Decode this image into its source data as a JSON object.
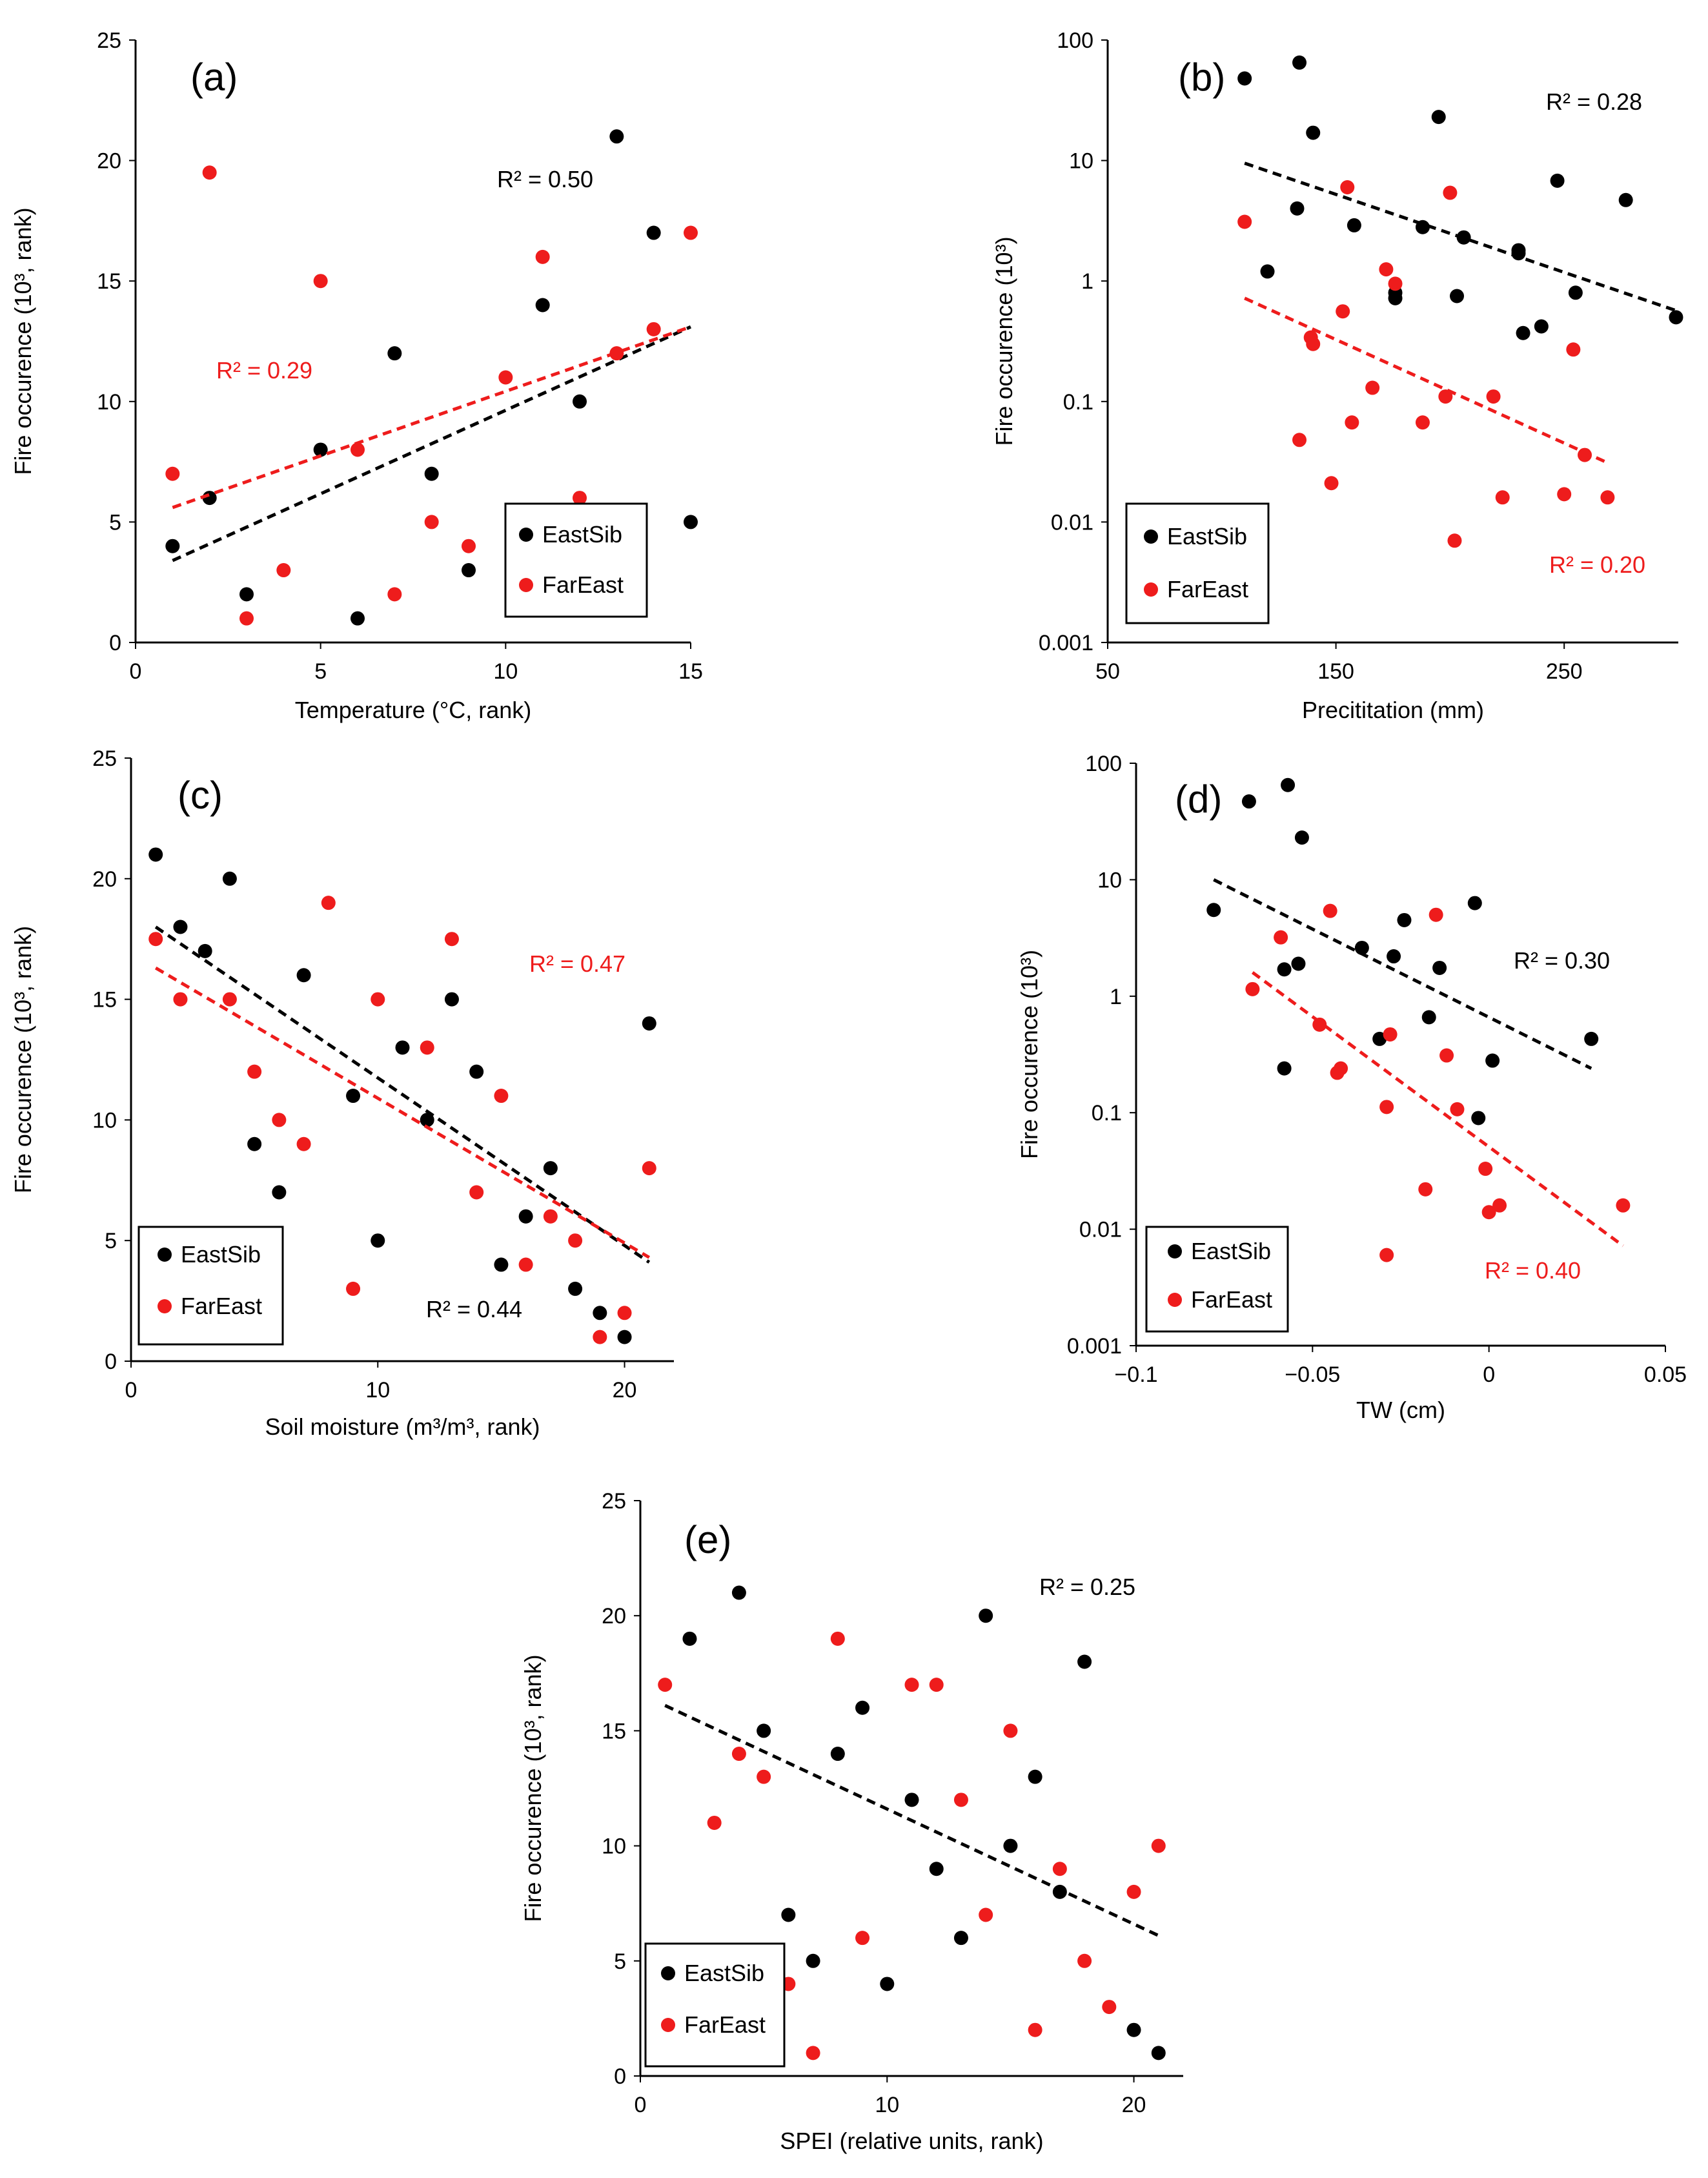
{
  "colors": {
    "eastsib": "#000000",
    "fareast": "#ee1c1c",
    "axis": "#000000",
    "background": "#ffffff"
  },
  "chart_data": [
    {
      "id": "a",
      "type": "scatter",
      "panel_label": "(a)",
      "xlabel": "Temperature (°C, rank)",
      "ylabel": "Fire occurence (10³, rank)",
      "xlim": [
        0,
        15
      ],
      "ylim": [
        0,
        25
      ],
      "xscale": "linear",
      "yscale": "linear",
      "xticks": [
        0,
        5,
        10,
        15
      ],
      "yticks": [
        0,
        5,
        10,
        15,
        20,
        25
      ],
      "xtick_labels": [
        "0",
        "5",
        "10",
        "15"
      ],
      "ytick_labels": [
        "0",
        "5",
        "10",
        "15",
        "20",
        "25"
      ],
      "legend": {
        "position": "bottom-right",
        "entries": [
          "EastSib",
          "FarEast"
        ]
      },
      "series": [
        {
          "name": "EastSib",
          "color": "#000000",
          "points": [
            [
              1,
              4
            ],
            [
              2,
              6
            ],
            [
              3,
              2
            ],
            [
              5,
              8
            ],
            [
              6,
              1
            ],
            [
              7,
              12
            ],
            [
              8,
              7
            ],
            [
              9,
              3
            ],
            [
              11,
              14
            ],
            [
              12,
              10
            ],
            [
              13,
              21
            ],
            [
              14,
              17
            ],
            [
              15,
              5
            ]
          ],
          "trend": {
            "x": [
              1,
              15
            ],
            "y": [
              3.4,
              13.1
            ]
          },
          "r2": "R² = 0.50"
        },
        {
          "name": "FarEast",
          "color": "#ee1c1c",
          "points": [
            [
              1,
              7
            ],
            [
              2,
              19.5
            ],
            [
              3,
              1
            ],
            [
              4,
              3
            ],
            [
              5,
              15
            ],
            [
              6,
              8
            ],
            [
              7,
              2
            ],
            [
              8,
              5
            ],
            [
              9,
              4
            ],
            [
              10,
              11
            ],
            [
              11,
              16
            ],
            [
              12,
              6
            ],
            [
              13,
              12
            ],
            [
              14,
              13
            ],
            [
              15,
              17
            ]
          ],
          "trend": {
            "x": [
              1,
              15
            ],
            "y": [
              5.6,
              13.1
            ]
          },
          "r2": "R² = 0.29"
        }
      ]
    },
    {
      "id": "b",
      "type": "scatter",
      "panel_label": "(b)",
      "xlabel": "Precititation (mm)",
      "ylabel": "Fire occurence (10³)",
      "xlim": [
        50,
        300
      ],
      "ylim": [
        0.001,
        100
      ],
      "xscale": "linear",
      "yscale": "log",
      "xticks": [
        50,
        150,
        250
      ],
      "yticks": [
        0.001,
        0.01,
        0.1,
        1,
        10,
        100
      ],
      "xtick_labels": [
        "50",
        "150",
        "250"
      ],
      "ytick_labels": [
        "0.001",
        "0.01",
        "0.1",
        "1",
        "10",
        "100"
      ],
      "legend": {
        "position": "bottom-left",
        "entries": [
          "EastSib",
          "FarEast"
        ]
      },
      "series": [
        {
          "name": "EastSib",
          "color": "#000000",
          "points": [
            [
              110,
              48
            ],
            [
              120,
              1.2
            ],
            [
              133,
              4
            ],
            [
              134,
              65
            ],
            [
              140,
              17
            ],
            [
              158,
              2.9
            ],
            [
              176,
              0.72
            ],
            [
              176,
              0.8
            ],
            [
              188,
              2.8
            ],
            [
              195,
              23
            ],
            [
              203,
              0.75
            ],
            [
              206,
              2.3
            ],
            [
              230,
              1.8
            ],
            [
              230,
              1.7
            ],
            [
              232,
              0.37
            ],
            [
              240,
              0.42
            ],
            [
              247,
              6.8
            ],
            [
              255,
              0.8
            ],
            [
              277,
              4.7
            ],
            [
              299,
              0.5
            ]
          ],
          "trend": {
            "x": [
              110,
              300
            ],
            "y": [
              9.5,
              0.56
            ]
          },
          "r2": "R² = 0.28"
        },
        {
          "name": "FarEast",
          "color": "#ee1c1c",
          "points": [
            [
              110,
              3.1
            ],
            [
              134,
              0.048
            ],
            [
              139,
              0.34
            ],
            [
              140,
              0.3
            ],
            [
              148,
              0.021
            ],
            [
              153,
              0.56
            ],
            [
              155,
              6
            ],
            [
              157,
              0.067
            ],
            [
              166,
              0.13
            ],
            [
              172,
              1.25
            ],
            [
              176,
              0.95
            ],
            [
              188,
              0.067
            ],
            [
              198,
              0.11
            ],
            [
              200,
              5.4
            ],
            [
              202,
              0.007
            ],
            [
              219,
              0.11
            ],
            [
              223,
              0.016
            ],
            [
              250,
              0.017
            ],
            [
              254,
              0.27
            ],
            [
              259,
              0.036
            ],
            [
              269,
              0.016
            ]
          ],
          "trend": {
            "x": [
              110,
              269
            ],
            "y": [
              0.72,
              0.031
            ]
          },
          "r2": "R² = 0.20"
        }
      ]
    },
    {
      "id": "c",
      "type": "scatter",
      "panel_label": "(c)",
      "xlabel": "Soil moisture (m³/m³, rank)",
      "ylabel": "Fire occurence (10³, rank)",
      "xlim": [
        0,
        22
      ],
      "ylim": [
        0,
        25
      ],
      "xscale": "linear",
      "yscale": "linear",
      "xticks": [
        0,
        10,
        20
      ],
      "yticks": [
        0,
        5,
        10,
        15,
        20,
        25
      ],
      "xtick_labels": [
        "0",
        "10",
        "20"
      ],
      "ytick_labels": [
        "0",
        "5",
        "10",
        "15",
        "20",
        "25"
      ],
      "legend": {
        "position": "bottom-left",
        "entries": [
          "EastSib",
          "FarEast"
        ]
      },
      "series": [
        {
          "name": "EastSib",
          "color": "#000000",
          "points": [
            [
              1,
              21
            ],
            [
              2,
              18
            ],
            [
              3,
              17
            ],
            [
              4,
              20
            ],
            [
              5,
              9
            ],
            [
              6,
              7
            ],
            [
              7,
              16
            ],
            [
              9,
              11
            ],
            [
              10,
              5
            ],
            [
              11,
              13
            ],
            [
              12,
              10
            ],
            [
              13,
              15
            ],
            [
              14,
              12
            ],
            [
              15,
              4
            ],
            [
              16,
              6
            ],
            [
              17,
              8
            ],
            [
              18,
              3
            ],
            [
              19,
              2
            ],
            [
              20,
              1
            ],
            [
              21,
              14
            ]
          ],
          "trend": {
            "x": [
              1,
              21
            ],
            "y": [
              18,
              4.1
            ]
          },
          "r2": "R² = 0.44"
        },
        {
          "name": "FarEast",
          "color": "#ee1c1c",
          "points": [
            [
              1,
              17.5
            ],
            [
              2,
              15
            ],
            [
              4,
              15
            ],
            [
              5,
              12
            ],
            [
              6,
              10
            ],
            [
              7,
              9
            ],
            [
              8,
              19
            ],
            [
              9,
              3
            ],
            [
              10,
              15
            ],
            [
              12,
              13
            ],
            [
              13,
              17.5
            ],
            [
              14,
              7
            ],
            [
              15,
              11
            ],
            [
              16,
              4
            ],
            [
              17,
              6
            ],
            [
              18,
              5
            ],
            [
              19,
              1
            ],
            [
              20,
              2
            ],
            [
              21,
              8
            ]
          ],
          "trend": {
            "x": [
              1,
              21
            ],
            "y": [
              16.3,
              4.3
            ]
          },
          "r2": "R² = 0.47"
        }
      ]
    },
    {
      "id": "d",
      "type": "scatter",
      "panel_label": "(d)",
      "xlabel": "TW (cm)",
      "ylabel": "Fire occurence (10³)",
      "xlim": [
        -0.1,
        0.05
      ],
      "ylim": [
        0.001,
        100
      ],
      "xscale": "linear",
      "yscale": "log",
      "xticks": [
        -0.1,
        -0.05,
        0,
        0.05
      ],
      "yticks": [
        0.001,
        0.01,
        0.1,
        1,
        10,
        100
      ],
      "xtick_labels": [
        "−0.1",
        "−0.05",
        "0",
        "0.05"
      ],
      "ytick_labels": [
        "0.001",
        "0.01",
        "0.1",
        "1",
        "10",
        "100"
      ],
      "legend": {
        "position": "bottom-left",
        "entries": [
          "EastSib",
          "FarEast"
        ]
      },
      "series": [
        {
          "name": "EastSib",
          "color": "#000000",
          "points": [
            [
              -0.078,
              5.5
            ],
            [
              -0.068,
              47
            ],
            [
              -0.058,
              0.24
            ],
            [
              -0.058,
              1.7
            ],
            [
              -0.057,
              65
            ],
            [
              -0.054,
              1.9
            ],
            [
              -0.053,
              23
            ],
            [
              -0.036,
              2.6
            ],
            [
              -0.031,
              0.43
            ],
            [
              -0.027,
              2.2
            ],
            [
              -0.024,
              4.5
            ],
            [
              -0.017,
              0.66
            ],
            [
              -0.014,
              1.75
            ],
            [
              -0.004,
              6.3
            ],
            [
              -0.003,
              0.09
            ],
            [
              0.001,
              0.28
            ],
            [
              0.029,
              0.43
            ]
          ],
          "trend": {
            "x": [
              -0.078,
              0.029
            ],
            "y": [
              10,
              0.24
            ]
          },
          "r2": "R² = 0.30"
        },
        {
          "name": "FarEast",
          "color": "#ee1c1c",
          "points": [
            [
              -0.067,
              1.15
            ],
            [
              -0.059,
              3.2
            ],
            [
              -0.048,
              0.57
            ],
            [
              -0.045,
              5.4
            ],
            [
              -0.043,
              0.22
            ],
            [
              -0.042,
              0.24
            ],
            [
              -0.029,
              0.112
            ],
            [
              -0.029,
              0.006
            ],
            [
              -0.028,
              0.47
            ],
            [
              -0.018,
              0.022
            ],
            [
              -0.015,
              5
            ],
            [
              -0.012,
              0.31
            ],
            [
              -0.009,
              0.107
            ],
            [
              -0.001,
              0.033
            ],
            [
              0,
              0.014
            ],
            [
              0.003,
              0.016
            ],
            [
              0.038,
              0.016
            ]
          ],
          "trend": {
            "x": [
              -0.067,
              0.038
            ],
            "y": [
              1.6,
              0.0072
            ]
          },
          "r2": "R² = 0.40"
        }
      ]
    },
    {
      "id": "e",
      "type": "scatter",
      "panel_label": "(e)",
      "xlabel": "SPEI (relative units, rank)",
      "ylabel": "Fire occurence (10³, rank)",
      "xlim": [
        0,
        22
      ],
      "ylim": [
        0,
        25
      ],
      "xscale": "linear",
      "yscale": "linear",
      "xticks": [
        0,
        10,
        20
      ],
      "yticks": [
        0,
        5,
        10,
        15,
        20,
        25
      ],
      "xtick_labels": [
        "0",
        "10",
        "20"
      ],
      "ytick_labels": [
        "0",
        "5",
        "10",
        "15",
        "20",
        "25"
      ],
      "legend": {
        "position": "bottom-left",
        "entries": [
          "EastSib",
          "FarEast"
        ]
      },
      "series": [
        {
          "name": "EastSib",
          "color": "#000000",
          "points": [
            [
              2,
              19
            ],
            [
              4,
              21
            ],
            [
              5,
              15
            ],
            [
              6,
              7
            ],
            [
              7,
              5
            ],
            [
              8,
              14
            ],
            [
              9,
              16
            ],
            [
              10,
              4
            ],
            [
              11,
              12
            ],
            [
              12,
              9
            ],
            [
              13,
              6
            ],
            [
              14,
              20
            ],
            [
              15,
              10
            ],
            [
              16,
              13
            ],
            [
              17,
              8
            ],
            [
              18,
              18
            ],
            [
              20,
              2
            ],
            [
              21,
              1
            ]
          ],
          "trend": {
            "x": [
              1,
              21
            ],
            "y": [
              16.1,
              6.1
            ]
          },
          "r2": "R² = 0.25"
        },
        {
          "name": "FarEast",
          "color": "#ee1c1c",
          "points": [
            [
              1,
              17
            ],
            [
              3,
              11
            ],
            [
              4,
              14
            ],
            [
              5,
              13
            ],
            [
              6,
              4
            ],
            [
              7,
              1
            ],
            [
              8,
              19
            ],
            [
              9,
              6
            ],
            [
              11,
              17
            ],
            [
              12,
              17
            ],
            [
              13,
              12
            ],
            [
              14,
              7
            ],
            [
              15,
              15
            ],
            [
              16,
              2
            ],
            [
              17,
              9
            ],
            [
              18,
              5
            ],
            [
              19,
              3
            ],
            [
              20,
              8
            ],
            [
              21,
              10
            ]
          ],
          "trend": null,
          "r2": null
        }
      ]
    }
  ]
}
